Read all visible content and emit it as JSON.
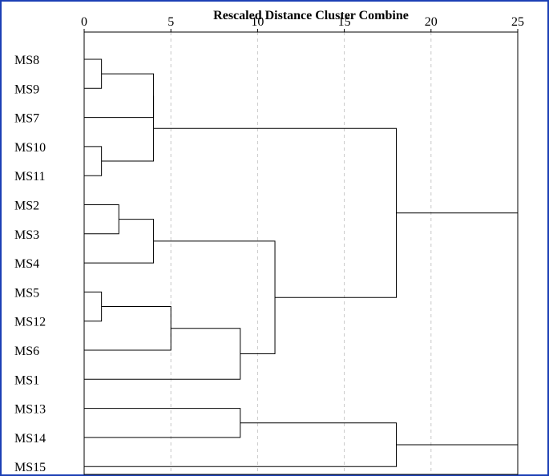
{
  "chart_data": {
    "type": "dendrogram",
    "title": "Rescaled Distance Cluster Combine",
    "x_ticks": [
      0,
      5,
      10,
      15,
      20,
      25
    ],
    "xlim": [
      0,
      25
    ],
    "grid": "vertical dashed",
    "leaves": [
      "MS8",
      "MS9",
      "MS7",
      "MS10",
      "MS11",
      "MS2",
      "MS3",
      "MS4",
      "MS5",
      "MS12",
      "MS6",
      "MS1",
      "MS13",
      "MS14",
      "MS15"
    ],
    "merges": [
      {
        "a": "MS8",
        "b": "MS9",
        "height": 1
      },
      {
        "a": "MS10",
        "b": "MS11",
        "height": 1
      },
      {
        "a": "MS8-MS9",
        "b": "MS7",
        "height": 4
      },
      {
        "a": "MS8-MS9-MS7",
        "b": "MS10-MS11",
        "height": 4
      },
      {
        "a": "MS2",
        "b": "MS3",
        "height": 2
      },
      {
        "a": "MS2-MS3",
        "b": "MS4",
        "height": 4
      },
      {
        "a": "MS5",
        "b": "MS12",
        "height": 1
      },
      {
        "a": "MS5-MS12",
        "b": "MS6",
        "height": 5
      },
      {
        "a": "MS5-MS12-MS6",
        "b": "MS1",
        "height": 9
      },
      {
        "a": "MS2-MS3-MS4",
        "b": "MS5-MS12-MS6-MS1",
        "height": 11
      },
      {
        "a": "MS8-MS9-MS7-MS10-MS11",
        "b": "MS2..MS1",
        "height": 18
      },
      {
        "a": "MS13",
        "b": "MS14",
        "height": 9
      },
      {
        "a": "MS13-MS14",
        "b": "MS15",
        "height": 18
      },
      {
        "a": "MS8..MS1",
        "b": "MS13-MS14-MS15",
        "height": 25
      }
    ]
  }
}
